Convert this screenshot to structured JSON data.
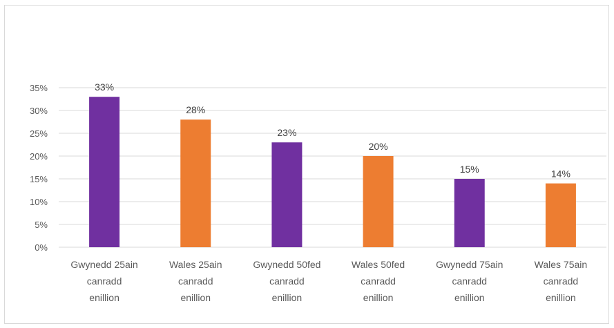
{
  "chart_data": {
    "type": "bar",
    "categories": [
      [
        "Gwynedd 25ain",
        "canradd",
        "enillion"
      ],
      [
        "Wales 25ain",
        "canradd",
        "enillion"
      ],
      [
        "Gwynedd 50fed",
        "canradd",
        "enillion"
      ],
      [
        "Wales 50fed",
        "canradd",
        "enillion"
      ],
      [
        "Gwynedd 75ain",
        "canradd",
        "enillion"
      ],
      [
        "Wales 75ain",
        "canradd",
        "enillion"
      ]
    ],
    "values": [
      33,
      28,
      23,
      20,
      15,
      14
    ],
    "data_labels": [
      "33%",
      "28%",
      "23%",
      "20%",
      "15%",
      "14%"
    ],
    "bar_colors": [
      "#7030a0",
      "#ed7d31",
      "#7030a0",
      "#ed7d31",
      "#7030a0",
      "#ed7d31"
    ],
    "ylim": [
      0,
      35
    ],
    "yticks": [
      "0%",
      "5%",
      "10%",
      "15%",
      "20%",
      "25%",
      "30%",
      "35%"
    ],
    "grid": true,
    "gridline_color": "#d9d9d9",
    "title": "",
    "xlabel": "",
    "ylabel": ""
  }
}
